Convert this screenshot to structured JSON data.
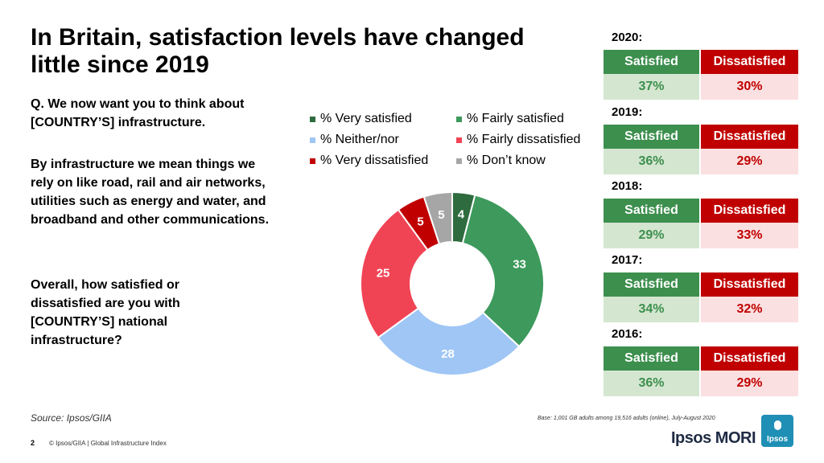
{
  "title": "In Britain, satisfaction levels have changed little since 2019",
  "questions": {
    "q1": "Q. We now want you to think about [COUNTRY’S] infrastructure.",
    "q2": "By infrastructure we mean things we rely on like road, rail and air networks, utilities such as energy and water, and broadband and other communications.",
    "q3": "Overall, how satisfied or dissatisfied are you with [COUNTRY’S] national infrastructure?"
  },
  "chart_data": {
    "type": "pie",
    "donut": true,
    "categories": [
      "% Very satisfied",
      "% Fairly satisfied",
      "% Neither/nor",
      "% Fairly dissatisfied",
      "% Very dissatisfied",
      "% Don’t know"
    ],
    "values": [
      4,
      33,
      28,
      25,
      5,
      5
    ],
    "colors": [
      "#2e6b3e",
      "#3d9a5c",
      "#9fc6f5",
      "#f04455",
      "#c00000",
      "#a6a6a6"
    ],
    "legend_position": "top"
  },
  "years": [
    {
      "label": "2020:",
      "sat_label": "Satisfied",
      "dis_label": "Dissatisfied",
      "sat": "37%",
      "dis": "30%"
    },
    {
      "label": "2019:",
      "sat_label": "Satisfied",
      "dis_label": "Dissatisfied",
      "sat": "36%",
      "dis": "29%"
    },
    {
      "label": "2018:",
      "sat_label": "Satisfied",
      "dis_label": "Dissatisfied",
      "sat": "29%",
      "dis": "33%"
    },
    {
      "label": "2017:",
      "sat_label": "Satisfied",
      "dis_label": "Dissatisfied",
      "sat": "34%",
      "dis": "32%"
    },
    {
      "label": "2016:",
      "sat_label": "Satisfied",
      "dis_label": "Dissatisfied",
      "sat": "36%",
      "dis": "29%"
    }
  ],
  "source": "Source: Ipsos/GIIA",
  "base": "Base: 1,001 GB adults among 19,516 adults (online), July-August 2020",
  "footer": {
    "page": "2",
    "text": "© Ipsos/GIIA | Global Infrastructure Index"
  },
  "brand": {
    "name": "Ipsos MORI",
    "logo_text": "Ipsos"
  }
}
